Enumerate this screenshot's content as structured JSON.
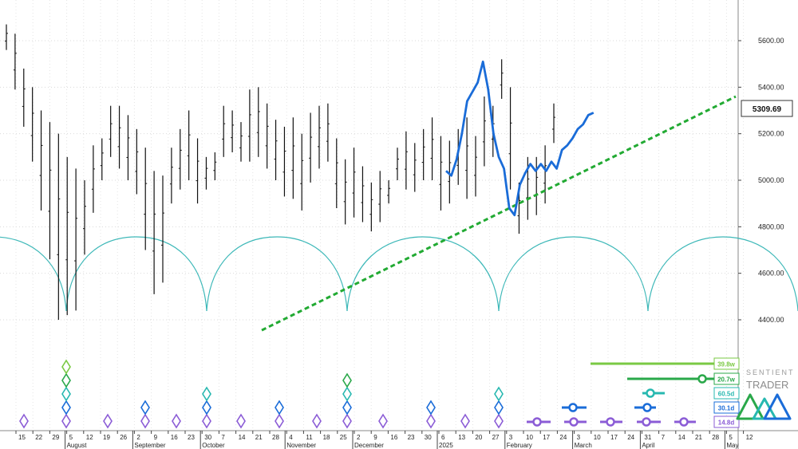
{
  "chart_data": {
    "type": "line",
    "y_axis": {
      "ticks": [
        4400,
        4600,
        4800,
        5000,
        5200,
        5400,
        5600
      ],
      "tick_labels": [
        "4400.00",
        "4600.00",
        "4800.00",
        "5000.00",
        "5200.00",
        "5400.00",
        "5600.00"
      ],
      "ylim": [
        4240,
        5775
      ],
      "side": "right"
    },
    "current_price_label": "5309.69",
    "x_axis": {
      "day_labels": [
        "15",
        "22",
        "29",
        "5",
        "12",
        "19",
        "26",
        "2",
        "9",
        "16",
        "23",
        "30",
        "7",
        "14",
        "21",
        "28",
        "4",
        "11",
        "18",
        "25",
        "2",
        "9",
        "16",
        "23",
        "30",
        "6",
        "13",
        "20",
        "27",
        "3",
        "10",
        "17",
        "24",
        "3",
        "10",
        "17",
        "24",
        "31",
        "7",
        "14",
        "21",
        "28",
        "5",
        "12"
      ],
      "month_labels": [
        "August",
        "September",
        "October",
        "November",
        "December",
        "2025",
        "February",
        "March",
        "April",
        "May"
      ]
    },
    "price_bars": {
      "description": "daily OHLC bars, values read from chart",
      "highs": [
        5670,
        5630,
        5480,
        5400,
        5300,
        5250,
        5200,
        5100,
        5050,
        5000,
        5150,
        5180,
        5320,
        5320,
        5280,
        5220,
        5140,
        5040,
        5020,
        5140,
        5220,
        5300,
        5180,
        5100,
        5120,
        5320,
        5300,
        5250,
        5390,
        5400,
        5330,
        5260,
        5230,
        5270,
        5200,
        5290,
        5320,
        5330,
        5180,
        5090,
        5140,
        5060,
        4990,
        5040,
        5000,
        5140,
        5210,
        5160,
        5220,
        5270,
        5190,
        5170,
        5220,
        5270,
        5190,
        5360,
        5320,
        5520,
        5400,
        4990,
        5100,
        5100,
        5150,
        5330
      ],
      "lows": [
        5560,
        5390,
        5230,
        5080,
        4870,
        4660,
        4400,
        4420,
        4440,
        4680,
        4860,
        5000,
        5100,
        5050,
        5000,
        4940,
        4700,
        4510,
        4560,
        4900,
        4960,
        5000,
        4900,
        4960,
        5000,
        5100,
        5120,
        5080,
        5080,
        5100,
        5050,
        5000,
        4930,
        4920,
        4870,
        4990,
        5050,
        5080,
        4880,
        4810,
        4840,
        4820,
        4780,
        4820,
        4900,
        5000,
        4960,
        4950,
        5000,
        5000,
        4870,
        4900,
        4980,
        4920,
        4930,
        5060,
        5100,
        5350,
        4960,
        4770,
        4830,
        4850,
        4900,
        5160
      ]
    },
    "series": [
      {
        "name": "Projection",
        "color": "#1a6cd8",
        "x": [
          -20,
          -18,
          -16,
          -14,
          -12,
          -10,
          -8,
          -6,
          -4,
          -2,
          0,
          2,
          4,
          6,
          8,
          10,
          12,
          14,
          16,
          18,
          20,
          22,
          24,
          26,
          28,
          30,
          32,
          34,
          36
        ],
        "values": [
          5040,
          5020,
          5090,
          5200,
          5340,
          5380,
          5420,
          5510,
          5390,
          5200,
          5100,
          5050,
          4880,
          4850,
          4980,
          5030,
          5070,
          5040,
          5070,
          5040,
          5080,
          5050,
          5130,
          5150,
          5180,
          5220,
          5240,
          5280,
          5290
        ]
      },
      {
        "name": "Trendline",
        "color": "#22aa33",
        "x": [
          -90,
          90
        ],
        "values": [
          4355,
          5360
        ]
      }
    ],
    "cycles": [
      {
        "label": "39.8w",
        "color": "#7ac943"
      },
      {
        "label": "20.7w",
        "color": "#2aa84a"
      },
      {
        "label": "60.5d",
        "color": "#27b8b0"
      },
      {
        "label": "30.1d",
        "color": "#1a6cd8"
      },
      {
        "label": "14.8d",
        "color": "#8b5cd6"
      }
    ],
    "colors": {
      "cycle_arc": "#3db8b8",
      "trendline": "#22aa33",
      "projection": "#1a6cd8",
      "bars": "#111111"
    }
  },
  "logo": {
    "line1": "SENTIENT",
    "line2": "TRADER"
  }
}
